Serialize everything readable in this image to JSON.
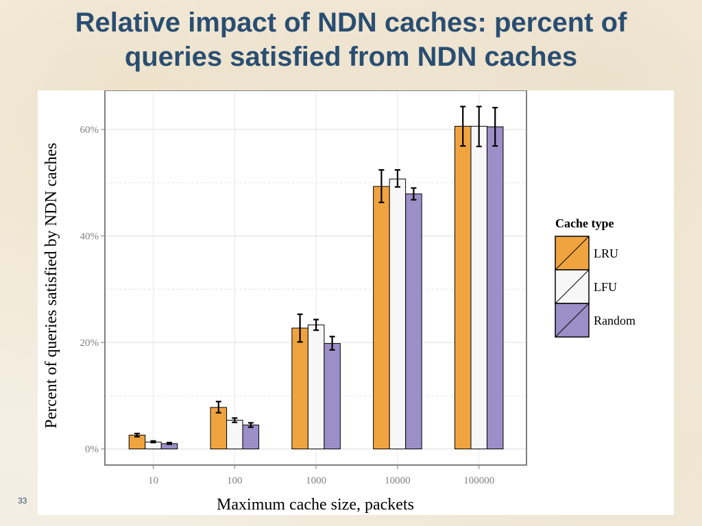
{
  "slide": {
    "title_line1": "Relative impact of NDN caches: percent of",
    "title_line2": "queries satisfied from NDN caches",
    "page_number": "33"
  },
  "chart_data": {
    "type": "bar",
    "xlabel": "Maximum cache size, packets",
    "ylabel": "Percent of queries satisfied by NDN caches",
    "categories": [
      "10",
      "100",
      "1000",
      "10000",
      "100000"
    ],
    "ylim": [
      0,
      0.67
    ],
    "yticks": [
      0,
      0.2,
      0.4,
      0.6
    ],
    "ytick_labels": [
      "0%",
      "20%",
      "40%",
      "60%"
    ],
    "grid": true,
    "legend_title": "Cache type",
    "legend_position": "right",
    "series": [
      {
        "name": "LRU",
        "color": "#f0a440",
        "values": [
          0.026,
          0.078,
          0.227,
          0.493,
          0.606
        ],
        "err_low": [
          0.023,
          0.068,
          0.201,
          0.463,
          0.569
        ],
        "err_high": [
          0.029,
          0.089,
          0.253,
          0.524,
          0.643
        ]
      },
      {
        "name": "LFU",
        "color": "#f7f7f7",
        "values": [
          0.013,
          0.054,
          0.233,
          0.507,
          0.606
        ],
        "err_low": [
          0.012,
          0.05,
          0.223,
          0.492,
          0.568
        ],
        "err_high": [
          0.015,
          0.058,
          0.243,
          0.524,
          0.643
        ]
      },
      {
        "name": "Random",
        "color": "#9a8fc7",
        "values": [
          0.01,
          0.045,
          0.198,
          0.479,
          0.605
        ],
        "err_low": [
          0.009,
          0.041,
          0.186,
          0.468,
          0.569
        ],
        "err_high": [
          0.012,
          0.049,
          0.211,
          0.49,
          0.641
        ]
      }
    ]
  }
}
